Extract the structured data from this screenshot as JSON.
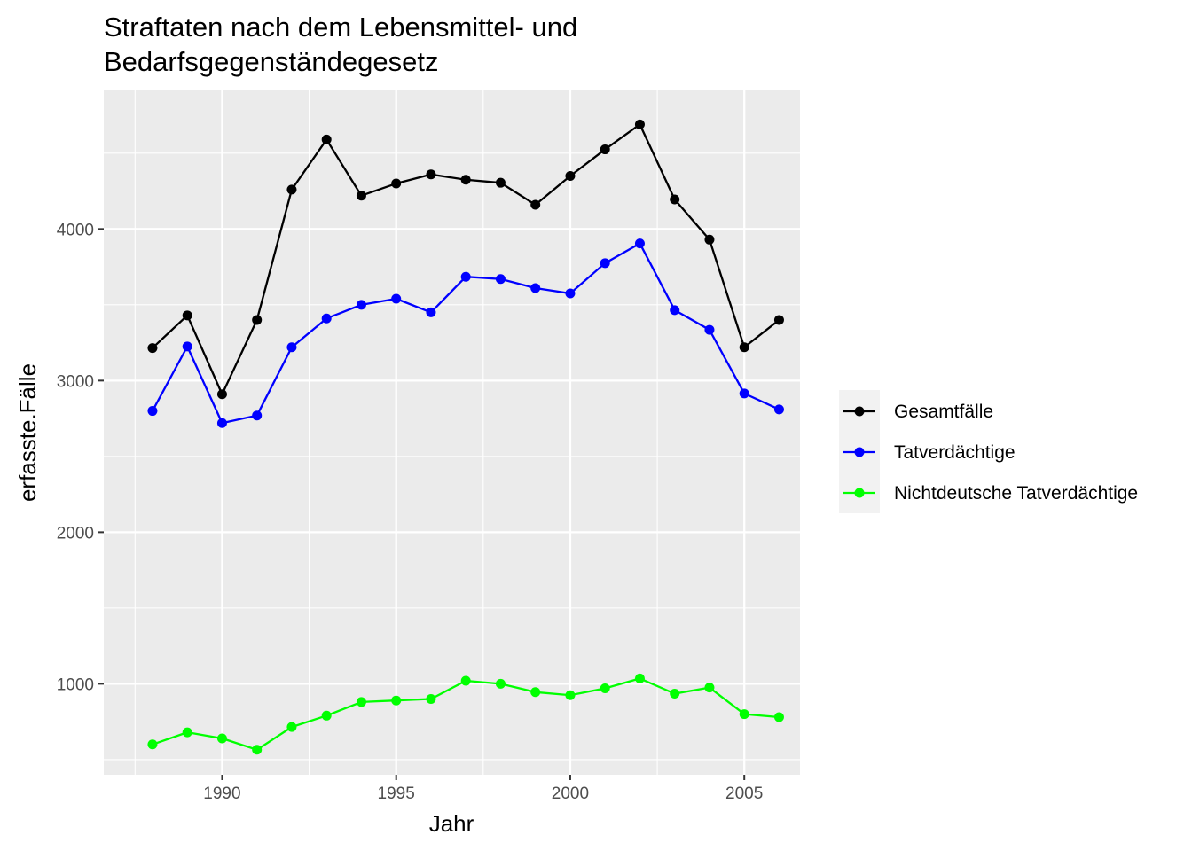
{
  "chart_data": {
    "type": "line",
    "title_lines": [
      "Straftaten nach dem Lebensmittel- und",
      "Bedarfsgegenständegesetz"
    ],
    "xlabel": "Jahr",
    "ylabel": "erfasste.Fälle",
    "x": [
      1988,
      1989,
      1990,
      1991,
      1992,
      1993,
      1994,
      1995,
      1996,
      1997,
      1998,
      1999,
      2000,
      2001,
      2002,
      2003,
      2004,
      2005,
      2006
    ],
    "xlim": [
      1986.6,
      2006.6
    ],
    "ylim": [
      400,
      4920
    ],
    "x_ticks": [
      1990,
      1995,
      2000,
      2005
    ],
    "y_ticks": [
      1000,
      2000,
      3000,
      4000
    ],
    "x_tick_labels": [
      "1990",
      "1995",
      "2000",
      "2005"
    ],
    "y_tick_labels": [
      "1000",
      "2000",
      "3000",
      "4000"
    ],
    "grid": true,
    "legend_position": "right",
    "series": [
      {
        "name": "Gesamtfälle",
        "color": "#000000",
        "values": [
          3215,
          3430,
          2910,
          3400,
          4260,
          4590,
          4220,
          4300,
          4360,
          4325,
          4305,
          4160,
          4350,
          4525,
          4690,
          4195,
          3930,
          3220,
          3400
        ]
      },
      {
        "name": "Tatverdächtige",
        "color": "#0000ff",
        "values": [
          2800,
          3225,
          2720,
          2770,
          3220,
          3410,
          3500,
          3540,
          3450,
          3685,
          3670,
          3610,
          3575,
          3775,
          3905,
          3465,
          3335,
          2915,
          2810
        ]
      },
      {
        "name": "Nichtdeutsche Tatverdächtige",
        "color": "#00ff00",
        "values": [
          600,
          680,
          640,
          565,
          715,
          790,
          880,
          890,
          900,
          1020,
          1000,
          945,
          925,
          970,
          1035,
          935,
          975,
          800,
          780
        ]
      }
    ]
  }
}
